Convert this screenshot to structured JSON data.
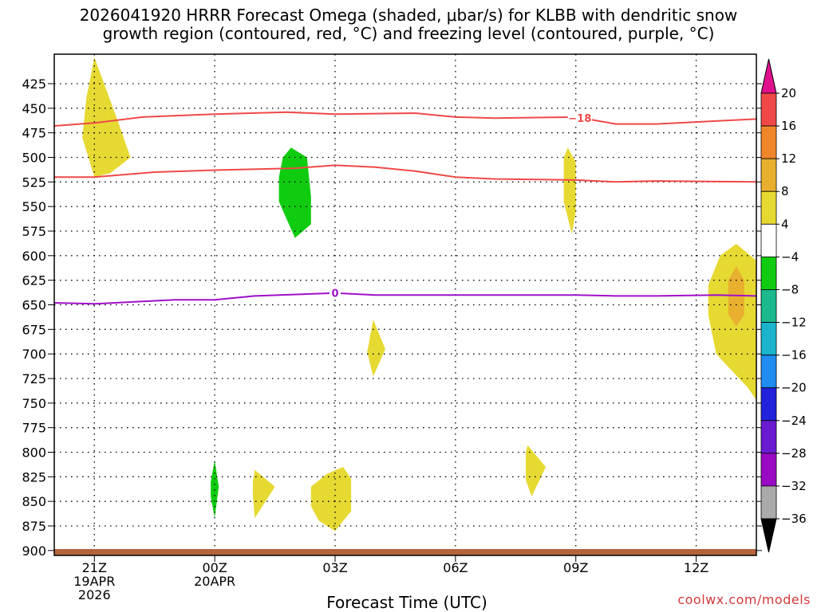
{
  "chart_data": {
    "type": "heatmap",
    "title": "2026041920 HRRR Forecast Omega (shaded, μbar/s) for KLBB with dendritic snow\ngrowth region (contoured, red, °C) and freezing level (contoured, purple, °C)",
    "xlabel": "Forecast Time (UTC)",
    "ylabel": "",
    "watermark": "coolwx.com/models",
    "xlim_hours": [
      -1.0,
      16.5
    ],
    "ylim_hpa": [
      905,
      395
    ],
    "y_ticks": [
      425,
      450,
      475,
      500,
      525,
      550,
      575,
      600,
      625,
      650,
      675,
      700,
      725,
      750,
      775,
      800,
      825,
      850,
      875,
      900
    ],
    "x_ticks": [
      {
        "hour": 0,
        "lines": [
          "21Z",
          "19APR",
          "2026"
        ]
      },
      {
        "hour": 3,
        "lines": [
          "00Z",
          "20APR"
        ]
      },
      {
        "hour": 6,
        "lines": [
          "03Z"
        ]
      },
      {
        "hour": 9,
        "lines": [
          "06Z"
        ]
      },
      {
        "hour": 12,
        "lines": [
          "09Z"
        ]
      },
      {
        "hour": 15,
        "lines": [
          "12Z"
        ]
      }
    ],
    "colorbar": {
      "labels": [
        "20",
        "16",
        "12",
        "8",
        "4",
        "−4",
        "−8",
        "−12",
        "−16",
        "−20",
        "−24",
        "−28",
        "−32",
        "−36"
      ],
      "bins": [
        {
          "lo": 16,
          "hi": 20,
          "color": "#f04848"
        },
        {
          "lo": 12,
          "hi": 16,
          "color": "#f0862a"
        },
        {
          "lo": 8,
          "hi": 12,
          "color": "#e8b02e"
        },
        {
          "lo": 4,
          "hi": 8,
          "color": "#e6d932"
        },
        {
          "lo": -4,
          "hi": 4,
          "color": "#ffffff"
        },
        {
          "lo": -8,
          "hi": -4,
          "color": "#10cc10"
        },
        {
          "lo": -12,
          "hi": -8,
          "color": "#1bb98c"
        },
        {
          "lo": -16,
          "hi": -12,
          "color": "#1ab4cc"
        },
        {
          "lo": -20,
          "hi": -16,
          "color": "#1e8cf0"
        },
        {
          "lo": -24,
          "hi": -20,
          "color": "#2222dd"
        },
        {
          "lo": -28,
          "hi": -24,
          "color": "#6a1ad2"
        },
        {
          "lo": -32,
          "hi": -28,
          "color": "#9a0ac4"
        },
        {
          "lo": -36,
          "hi": -32,
          "color": "#aaaaaa"
        }
      ],
      "top_arrow_color": "#e0108c",
      "bottom_arrow_color": "#000000"
    },
    "omega_regions": [
      {
        "value": 6,
        "color": "#e6d932",
        "points": [
          [
            0.0,
            398
          ],
          [
            0.6,
            465
          ],
          [
            0.9,
            500
          ],
          [
            0.4,
            516
          ],
          [
            0.0,
            520
          ],
          [
            -0.3,
            480
          ],
          [
            -0.2,
            440
          ]
        ]
      },
      {
        "value": -6,
        "color": "#10cc10",
        "points": [
          [
            4.9,
            490
          ],
          [
            5.3,
            500
          ],
          [
            5.4,
            540
          ],
          [
            5.4,
            568
          ],
          [
            5.0,
            582
          ],
          [
            4.6,
            545
          ],
          [
            4.6,
            520
          ],
          [
            4.7,
            500
          ]
        ]
      },
      {
        "value": 6,
        "color": "#e6d932",
        "points": [
          [
            11.8,
            490
          ],
          [
            12.0,
            505
          ],
          [
            12.0,
            555
          ],
          [
            11.9,
            578
          ],
          [
            11.7,
            545
          ],
          [
            11.7,
            500
          ]
        ]
      },
      {
        "value": 6,
        "color": "#e6d932",
        "points": [
          [
            16.0,
            588
          ],
          [
            16.5,
            605
          ],
          [
            16.5,
            747
          ],
          [
            16.3,
            735
          ],
          [
            15.5,
            700
          ],
          [
            15.3,
            660
          ],
          [
            15.3,
            630
          ],
          [
            15.6,
            600
          ]
        ]
      },
      {
        "value": 10,
        "color": "#e8b02e",
        "points": [
          [
            16.0,
            611
          ],
          [
            16.2,
            625
          ],
          [
            16.2,
            660
          ],
          [
            16.0,
            672
          ],
          [
            15.8,
            660
          ],
          [
            15.8,
            625
          ]
        ]
      },
      {
        "value": 6,
        "color": "#e6d932",
        "points": [
          [
            6.95,
            665
          ],
          [
            7.25,
            695
          ],
          [
            6.95,
            723
          ],
          [
            6.8,
            698
          ]
        ]
      },
      {
        "value": 6,
        "color": "#e6d932",
        "points": [
          [
            10.8,
            793
          ],
          [
            11.25,
            815
          ],
          [
            10.9,
            845
          ],
          [
            10.75,
            828
          ],
          [
            10.75,
            800
          ]
        ]
      },
      {
        "value": -6,
        "color": "#10cc10",
        "points": [
          [
            3.0,
            808
          ],
          [
            3.1,
            835
          ],
          [
            3.0,
            867
          ],
          [
            2.9,
            845
          ],
          [
            2.9,
            830
          ]
        ]
      },
      {
        "value": 6,
        "color": "#e6d932",
        "points": [
          [
            4.0,
            818
          ],
          [
            4.5,
            835
          ],
          [
            4.0,
            867
          ],
          [
            3.95,
            845
          ],
          [
            3.95,
            830
          ]
        ]
      },
      {
        "value": 6,
        "color": "#e6d932",
        "points": [
          [
            6.2,
            815
          ],
          [
            6.4,
            827
          ],
          [
            6.4,
            860
          ],
          [
            6.0,
            880
          ],
          [
            5.6,
            870
          ],
          [
            5.4,
            855
          ],
          [
            5.4,
            835
          ],
          [
            5.8,
            822
          ]
        ]
      }
    ],
    "contours": [
      {
        "name": "dgz-upper",
        "label": "−18",
        "color": "#f04848",
        "label_at_hour": 12.1,
        "points": [
          [
            -1.0,
            468
          ],
          [
            0.0,
            465
          ],
          [
            1.2,
            459
          ],
          [
            3.0,
            456
          ],
          [
            4.8,
            454
          ],
          [
            6.0,
            456
          ],
          [
            8.0,
            455
          ],
          [
            9.0,
            459
          ],
          [
            10.0,
            460
          ],
          [
            12.0,
            459
          ],
          [
            13.0,
            466
          ],
          [
            14.0,
            466
          ],
          [
            16.5,
            461
          ]
        ]
      },
      {
        "name": "dgz-lower",
        "label": "",
        "color": "#f04848",
        "label_at_hour": null,
        "points": [
          [
            -1.0,
            520
          ],
          [
            0.0,
            520
          ],
          [
            1.5,
            515
          ],
          [
            3.0,
            513
          ],
          [
            5.0,
            511
          ],
          [
            6.0,
            508
          ],
          [
            7.0,
            510
          ],
          [
            8.0,
            514
          ],
          [
            9.0,
            520
          ],
          [
            10.0,
            522
          ],
          [
            12.0,
            523
          ],
          [
            13.0,
            525
          ],
          [
            14.0,
            524
          ],
          [
            16.5,
            525
          ]
        ]
      },
      {
        "name": "freezing-level",
        "label": "0",
        "color": "#a010c8",
        "label_at_hour": 6.0,
        "points": [
          [
            -1.0,
            648
          ],
          [
            0.0,
            649
          ],
          [
            1.0,
            647
          ],
          [
            2.0,
            645
          ],
          [
            3.0,
            645
          ],
          [
            4.0,
            641
          ],
          [
            6.0,
            638
          ],
          [
            7.0,
            640
          ],
          [
            9.0,
            640
          ],
          [
            12.0,
            640
          ],
          [
            13.0,
            641
          ],
          [
            14.0,
            641
          ],
          [
            15.5,
            640
          ],
          [
            16.5,
            641
          ]
        ]
      }
    ],
    "terrain_color": "#b4643c"
  }
}
